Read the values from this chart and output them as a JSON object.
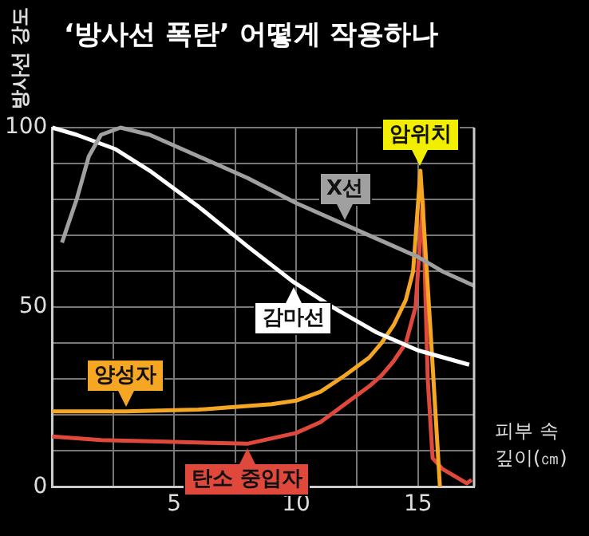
{
  "chart_data": {
    "type": "line",
    "title": "‘방사선 폭탄’ 어떻게 작용하나",
    "ylabel": "방사선 강도",
    "xlabel": "피부 속 깊이(㎝)",
    "xlim": [
      0,
      17.3
    ],
    "xticks": [
      {
        "value": 2.5,
        "label": null
      },
      5,
      {
        "value": 7.5,
        "label": null
      },
      10,
      {
        "value": 12.5,
        "label": null
      },
      15
    ],
    "ylim": [
      0,
      100
    ],
    "yticks": [
      0,
      {
        "value": 10,
        "label": null
      },
      {
        "value": 20,
        "label": null
      },
      {
        "value": 30,
        "label": null
      },
      {
        "value": 40,
        "label": null
      },
      50,
      {
        "value": 60,
        "label": null
      },
      {
        "value": 70,
        "label": null
      },
      {
        "value": 80,
        "label": null
      },
      {
        "value": 90,
        "label": null
      },
      100
    ],
    "grid": true,
    "legend": false,
    "marker": "none",
    "line_style": "solid",
    "annotations": [
      {
        "text": "암위치",
        "x": 15.1,
        "y": 88
      }
    ],
    "series": [
      {
        "name": "X선",
        "color": "#a0a0a0",
        "x": [
          0.4,
          1,
          1.5,
          2,
          2.8,
          4,
          6,
          8,
          10,
          12,
          14,
          15,
          16,
          17.3
        ],
        "values": [
          68,
          80,
          92,
          98,
          100,
          98,
          92,
          86,
          79,
          73,
          67,
          64,
          60,
          56
        ]
      },
      {
        "name": "감마선",
        "color": "#ffffff",
        "x": [
          0,
          1,
          2.6,
          4,
          6,
          8,
          9.9,
          11.5,
          13.3,
          15,
          17.1
        ],
        "values": [
          100,
          98,
          94,
          88,
          78,
          67,
          57,
          50,
          43,
          38,
          34
        ]
      },
      {
        "name": "양성자",
        "color": "#f5a623",
        "x": [
          0,
          3,
          6,
          9,
          10,
          11,
          12,
          13,
          13.5,
          14,
          14.5,
          14.8,
          15.1,
          15.5,
          15.9
        ],
        "values": [
          21,
          21,
          21.5,
          23,
          24,
          26.5,
          31,
          36,
          40,
          45,
          52,
          60,
          88,
          45,
          0
        ]
      },
      {
        "name": "탄소 중입자",
        "color": "#e0483c",
        "x": [
          0,
          2,
          5,
          8,
          10,
          11,
          12,
          13,
          13.5,
          14,
          14.5,
          14.9,
          15.2,
          15.4,
          15.6,
          16,
          16.5,
          17,
          17.2
        ],
        "values": [
          14,
          13,
          12.5,
          12,
          15,
          18,
          23,
          28,
          31,
          35,
          40,
          50,
          80,
          30,
          8,
          5,
          3,
          1,
          2
        ]
      }
    ]
  }
}
